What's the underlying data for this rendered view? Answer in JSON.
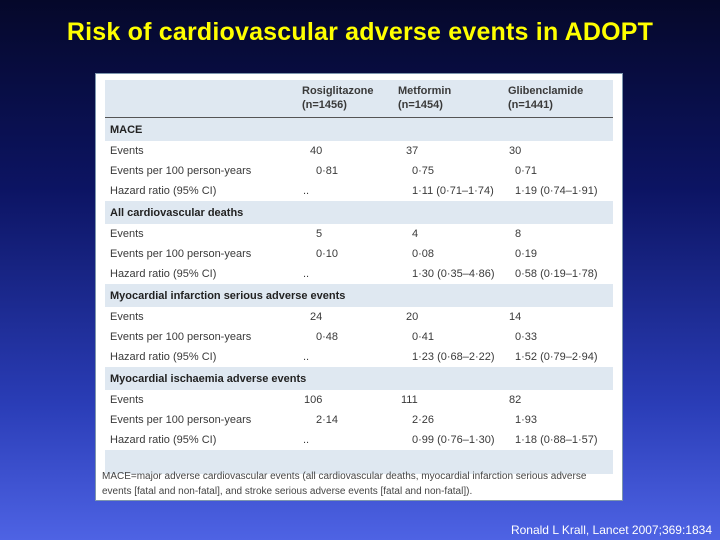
{
  "slide": {
    "title": "Risk of cardiovascular adverse events in ADOPT",
    "citation": "Ronald L Krall, Lancet 2007;369:1834"
  },
  "table": {
    "columns": [
      {
        "name": "Rosiglitazone",
        "n": "(n=1456)"
      },
      {
        "name": "Metformin",
        "n": "(n=1454)"
      },
      {
        "name": "Glibenclamide",
        "n": "(n=1441)"
      }
    ],
    "sections": [
      {
        "title": "MACE",
        "rows": [
          {
            "label": "Events",
            "values": [
              "40",
              "37",
              "30"
            ]
          },
          {
            "label": "Events per 100 person-years",
            "values": [
              "0·81",
              "0·75",
              "0·71"
            ]
          },
          {
            "label": "Hazard ratio (95% CI)",
            "values": [
              "..",
              "1·11 (0·71–1·74)",
              "1·19 (0·74–1·91)"
            ]
          }
        ]
      },
      {
        "title": "All cardiovascular deaths",
        "rows": [
          {
            "label": "Events",
            "values": [
              "5",
              "4",
              "8"
            ]
          },
          {
            "label": "Events per 100 person-years",
            "values": [
              "0·10",
              "0·08",
              "0·19"
            ]
          },
          {
            "label": "Hazard ratio (95% CI)",
            "values": [
              "..",
              "1·30 (0·35–4·86)",
              "0·58 (0·19–1·78)"
            ]
          }
        ]
      },
      {
        "title": "Myocardial infarction serious adverse events",
        "rows": [
          {
            "label": "Events",
            "values": [
              "24",
              "20",
              "14"
            ]
          },
          {
            "label": "Events per 100 person-years",
            "values": [
              "0·48",
              "0·41",
              "0·33"
            ]
          },
          {
            "label": "Hazard ratio (95% CI)",
            "values": [
              "..",
              "1·23 (0·68–2·22)",
              "1·52 (0·79–2·94)"
            ]
          }
        ]
      },
      {
        "title": "Myocardial ischaemia adverse events",
        "rows": [
          {
            "label": "Events",
            "values": [
              "106",
              "111",
              "82"
            ]
          },
          {
            "label": "Events per 100 person-years",
            "values": [
              "2·14",
              "2·26",
              "1·93"
            ]
          },
          {
            "label": "Hazard ratio (95% CI)",
            "values": [
              "..",
              "0·99 (0·76–1·30)",
              "1·18 (0·88–1·57)"
            ]
          }
        ]
      }
    ],
    "footnote": "MACE=major adverse cardiovascular events (all cardiovascular deaths, myocardial infarction serious adverse events [fatal and non-fatal], and stroke serious adverse events [fatal and non-fatal])."
  }
}
